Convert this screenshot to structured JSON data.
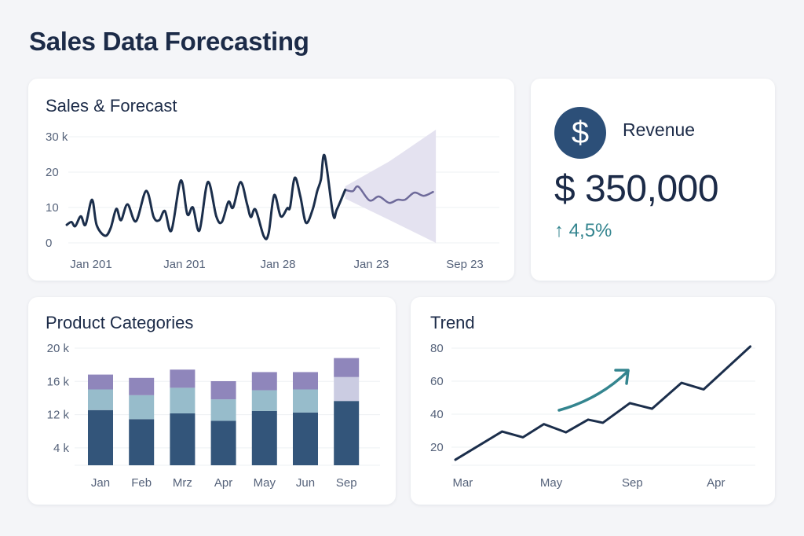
{
  "title": "Sales Data Forecasting",
  "colors": {
    "navy": "#1b2e4b",
    "bar_dark": "#33557a",
    "bar_mid": "#97bccb",
    "bar_top": "#8f86bb",
    "bar_light": "#cbcce2",
    "band": "#e4e2f0",
    "forecast": "#6e6a9a",
    "teal": "#34858f",
    "grid": "#eef0f3"
  },
  "revenue": {
    "icon": "dollar-icon",
    "icon_glyph": "$",
    "label": "Revenue",
    "value": "$ 350,000",
    "change_arrow": "↑",
    "change": "4,5%"
  },
  "chart_data": [
    {
      "type": "line",
      "title": "Sales & Forecast",
      "yticks": [
        {
          "v": 30,
          "label": "30 k"
        },
        {
          "v": 20,
          "label": "20"
        },
        {
          "v": 10,
          "label": "10"
        },
        {
          "v": 0,
          "label": "0"
        }
      ],
      "ylim": [
        0,
        30
      ],
      "xticks": [
        {
          "t": 0,
          "label": "Jan 201"
        },
        {
          "t": 1,
          "label": "Jan 201"
        },
        {
          "t": 2,
          "label": "Jan 28"
        },
        {
          "t": 3,
          "label": "Jan 23"
        },
        {
          "t": 4,
          "label": "Sep 23"
        }
      ],
      "grid": true,
      "actual": [
        [
          -0.26,
          5.1
        ],
        [
          -0.21,
          5.9
        ],
        [
          -0.17,
          4.7
        ],
        [
          -0.11,
          7.5
        ],
        [
          -0.06,
          5.1
        ],
        [
          0.01,
          12.2
        ],
        [
          0.06,
          5.0
        ],
        [
          0.15,
          2.0
        ],
        [
          0.21,
          4.2
        ],
        [
          0.27,
          9.6
        ],
        [
          0.32,
          6.4
        ],
        [
          0.39,
          10.9
        ],
        [
          0.48,
          6.1
        ],
        [
          0.59,
          14.7
        ],
        [
          0.67,
          7.3
        ],
        [
          0.73,
          6.4
        ],
        [
          0.79,
          9.0
        ],
        [
          0.86,
          3.5
        ],
        [
          0.96,
          17.6
        ],
        [
          1.03,
          8.1
        ],
        [
          1.09,
          10.0
        ],
        [
          1.16,
          3.5
        ],
        [
          1.25,
          17.2
        ],
        [
          1.34,
          7.5
        ],
        [
          1.4,
          5.9
        ],
        [
          1.47,
          11.6
        ],
        [
          1.52,
          10.0
        ],
        [
          1.6,
          17.2
        ],
        [
          1.67,
          10.9
        ],
        [
          1.71,
          7.3
        ],
        [
          1.76,
          9.4
        ],
        [
          1.85,
          1.8
        ],
        [
          1.9,
          2.7
        ],
        [
          1.96,
          13.5
        ],
        [
          2.03,
          7.5
        ],
        [
          2.1,
          9.8
        ],
        [
          2.13,
          10.1
        ],
        [
          2.18,
          18.4
        ],
        [
          2.24,
          13.1
        ],
        [
          2.3,
          5.7
        ],
        [
          2.37,
          9.3
        ],
        [
          2.42,
          14.6
        ],
        [
          2.46,
          17.9
        ],
        [
          2.5,
          24.6
        ],
        [
          2.59,
          8.1
        ],
        [
          2.63,
          9.4
        ],
        [
          2.72,
          15.0
        ]
      ],
      "forecast": [
        [
          2.72,
          15.0
        ],
        [
          2.8,
          14.6
        ],
        [
          2.86,
          15.9
        ],
        [
          2.98,
          12.0
        ],
        [
          3.08,
          13.1
        ],
        [
          3.19,
          11.3
        ],
        [
          3.28,
          12.2
        ],
        [
          3.36,
          12.2
        ],
        [
          3.46,
          14.2
        ],
        [
          3.56,
          13.3
        ],
        [
          3.66,
          14.4
        ]
      ],
      "band": [
        [
          2.72,
          12.5,
          16.0
        ],
        [
          3.19,
          6.5,
          23.0
        ],
        [
          3.69,
          0,
          32.0
        ]
      ]
    },
    {
      "type": "bar",
      "stacked": true,
      "title": "Product Categories",
      "yticks": [
        "20 k",
        "16 k",
        "12 k",
        "4 k"
      ],
      "categories": [
        "Jan",
        "Feb",
        "Mrz",
        "Apr",
        "May",
        "Jun",
        "Sep"
      ],
      "stack_tops": [
        [
          12.5,
          15.0,
          16.8
        ],
        [
          11.4,
          14.3,
          16.4
        ],
        [
          12.1,
          15.2,
          17.4
        ],
        [
          11.2,
          13.8,
          16.0
        ],
        [
          12.4,
          14.9,
          17.1
        ],
        [
          12.2,
          15.0,
          17.1
        ],
        [
          13.6,
          16.5,
          18.8
        ]
      ],
      "middle_colors": [
        "bar_mid",
        "bar_mid",
        "bar_mid",
        "bar_mid",
        "bar_mid",
        "bar_mid",
        "bar_light"
      ],
      "grid": true
    },
    {
      "type": "line",
      "title": "Trend",
      "yticks": [
        80,
        60,
        40,
        20
      ],
      "ylim": [
        9,
        80
      ],
      "xticks": [
        {
          "t": 0.3,
          "label": "Mar"
        },
        {
          "t": 3.9,
          "label": "May"
        },
        {
          "t": 7.2,
          "label": "Sep"
        },
        {
          "t": 10.6,
          "label": "Apr"
        }
      ],
      "points": [
        [
          0,
          12.4
        ],
        [
          1.9,
          29.5
        ],
        [
          2.75,
          26
        ],
        [
          3.6,
          34
        ],
        [
          4.5,
          29
        ],
        [
          5.4,
          36.7
        ],
        [
          6.0,
          34.8
        ],
        [
          7.1,
          46.7
        ],
        [
          8.0,
          43.3
        ],
        [
          9.2,
          59
        ],
        [
          10.1,
          55
        ],
        [
          12,
          81
        ]
      ],
      "annotation": "trend-up-arrow",
      "grid": true
    }
  ]
}
